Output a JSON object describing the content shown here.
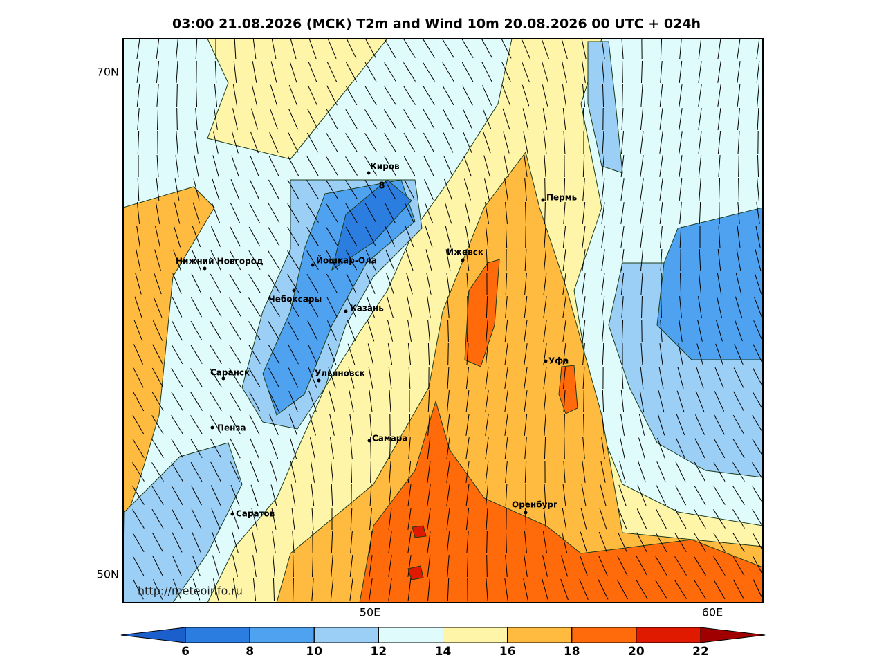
{
  "title": "03:00 21.08.2026 (МСК) T2m and Wind 10m 20.08.2026 00 UTC + 024h",
  "lat_labels": [
    "70N",
    "50N"
  ],
  "lon_labels": [
    "50E",
    "60E"
  ],
  "cities": [
    "Киров",
    "Пермь",
    "Нижний Новгород",
    "Йошкар-Ола",
    "Ижевск",
    "Чебоксары",
    "Казань",
    "Уфа",
    "Саранск",
    "Ульяновск",
    "Пенза",
    "Самара",
    "Оренбург",
    "Саратов"
  ],
  "contour_label": "8",
  "watermark": "http://meteoinfo.ru",
  "colorbar": {
    "ticks": [
      6,
      8,
      10,
      12,
      14,
      16,
      18,
      20,
      22
    ],
    "colors": [
      "#1b5fcc",
      "#2b7de0",
      "#4fa2f0",
      "#9ccff5",
      "#e0fbfb",
      "#fff5a8",
      "#ffbb40",
      "#ff6a0a",
      "#e01a00",
      "#a00000"
    ]
  }
}
